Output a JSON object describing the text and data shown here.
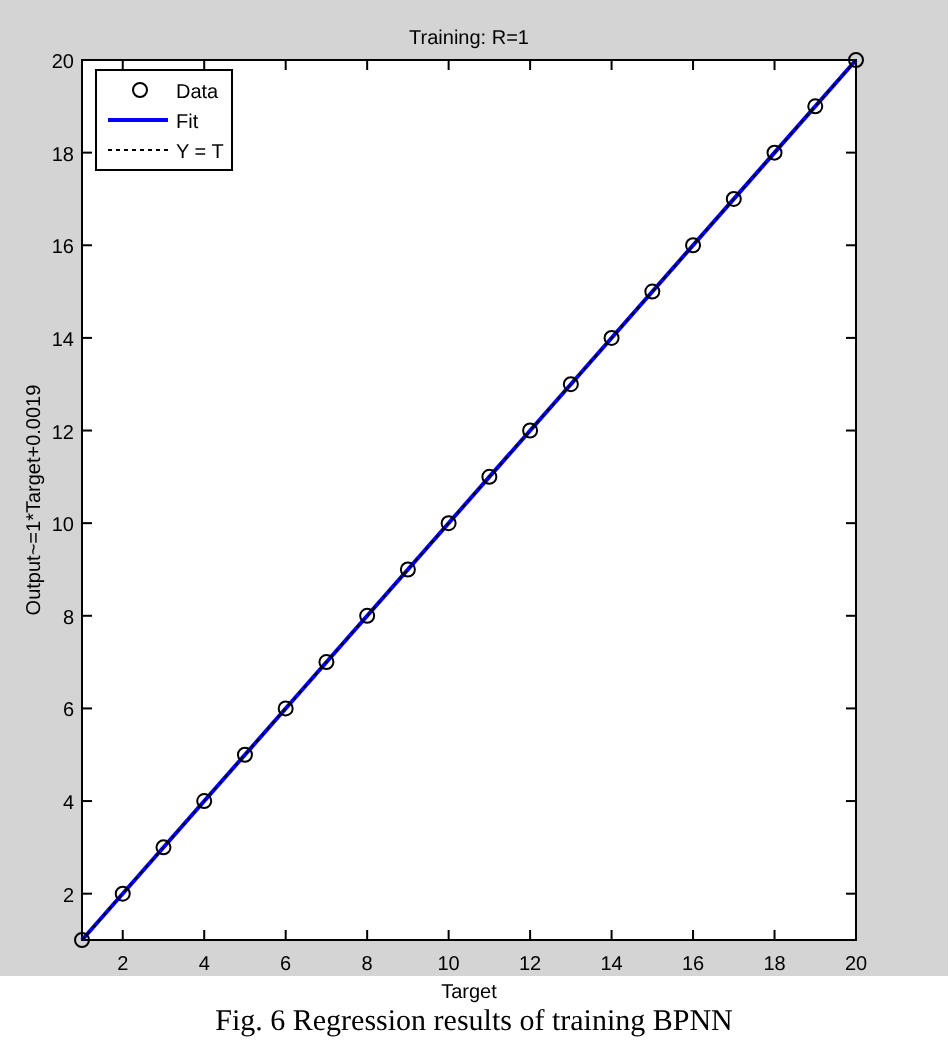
{
  "chart_data": {
    "type": "scatter",
    "title": "Training: R=1",
    "xlabel": "Target",
    "ylabel": "Output~=1*Target+0.0019",
    "annotations": [
      "Fig. 6 Regression results of training BPNN"
    ],
    "series": [
      {
        "name": "Data",
        "color": "#000000",
        "marker": "circle",
        "x": [
          1,
          2,
          3,
          4,
          5,
          6,
          7,
          8,
          9,
          10,
          11,
          12,
          13,
          14,
          15,
          16,
          17,
          18,
          19,
          20
        ],
        "values": [
          1,
          2,
          3,
          4,
          5,
          6,
          7,
          8,
          9,
          10,
          11,
          12,
          13,
          14,
          15,
          16,
          17,
          18,
          19,
          20
        ]
      },
      {
        "name": "Fit",
        "type": "line",
        "color": "#0000ff",
        "line_style": "solid",
        "x": [
          1,
          20
        ],
        "values": [
          1,
          20
        ]
      },
      {
        "name": "Y = T",
        "type": "line",
        "color": "#000000",
        "line_style": "dotted",
        "x": [
          1,
          20
        ],
        "values": [
          1,
          20
        ]
      }
    ],
    "xlim": [
      1,
      20
    ],
    "ylim": [
      1,
      20
    ],
    "xticks": [
      2,
      4,
      6,
      8,
      10,
      12,
      14,
      16,
      18,
      20
    ],
    "yticks": [
      2,
      4,
      6,
      8,
      10,
      12,
      14,
      16,
      18,
      20
    ],
    "grid": false,
    "legend": "top left"
  }
}
